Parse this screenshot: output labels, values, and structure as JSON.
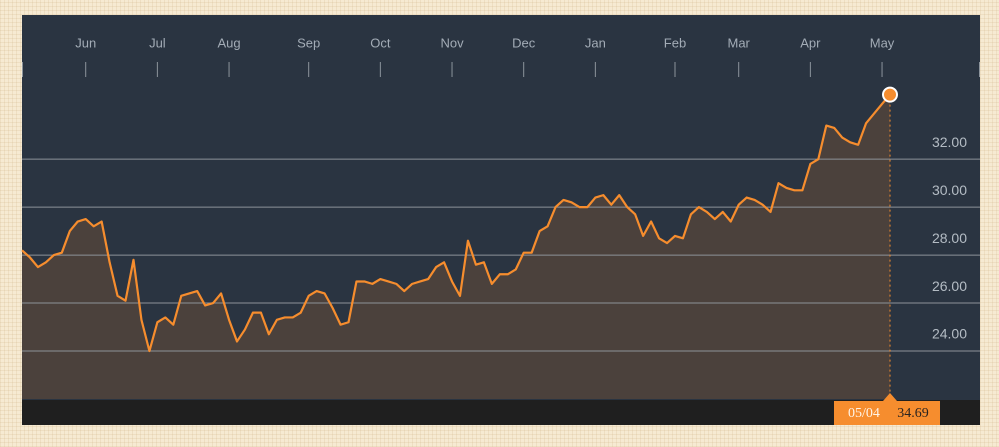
{
  "chart_data": {
    "type": "area",
    "categories": [
      null,
      null,
      null,
      null,
      null,
      null,
      null,
      null,
      "Jun",
      null,
      null,
      null,
      null,
      null,
      null,
      null,
      null,
      "Jul",
      null,
      null,
      null,
      null,
      null,
      null,
      null,
      null,
      "Aug",
      null,
      null,
      null,
      null,
      null,
      null,
      null,
      null,
      null,
      "Sep",
      null,
      null,
      null,
      null,
      null,
      null,
      null,
      null,
      "Oct",
      null,
      null,
      null,
      null,
      null,
      null,
      null,
      null,
      "Nov",
      null,
      null,
      null,
      null,
      null,
      null,
      null,
      null,
      "Dec",
      null,
      null,
      null,
      null,
      null,
      null,
      null,
      null,
      "Jan",
      null,
      null,
      null,
      null,
      null,
      null,
      null,
      null,
      null,
      "Feb",
      null,
      null,
      null,
      null,
      null,
      null,
      null,
      "Mar",
      null,
      null,
      null,
      null,
      null,
      null,
      null,
      null,
      "Apr",
      null,
      null,
      null,
      null,
      null,
      null,
      null,
      null,
      "May",
      "05/04"
    ],
    "series": [
      {
        "color": "#f68d2e",
        "fill": "#4b413c",
        "values": [
          28.2,
          27.9,
          27.5,
          27.7,
          28.0,
          28.1,
          29.0,
          29.4,
          29.5,
          29.2,
          29.4,
          27.7,
          26.3,
          26.1,
          27.8,
          25.3,
          24.0,
          25.2,
          25.4,
          25.1,
          26.3,
          26.4,
          26.5,
          25.9,
          26.0,
          26.4,
          25.3,
          24.4,
          24.9,
          25.6,
          25.6,
          24.7,
          25.3,
          25.4,
          25.4,
          25.6,
          26.3,
          26.5,
          26.4,
          25.8,
          25.1,
          25.2,
          26.9,
          26.9,
          26.8,
          27.0,
          26.9,
          26.8,
          26.5,
          26.8,
          26.9,
          27.0,
          27.5,
          27.7,
          26.9,
          26.3,
          28.6,
          27.6,
          27.7,
          26.8,
          27.2,
          27.2,
          27.4,
          28.1,
          28.1,
          29.0,
          29.2,
          30.0,
          30.3,
          30.2,
          30.0,
          30.0,
          30.4,
          30.5,
          30.1,
          30.5,
          30.0,
          29.7,
          28.8,
          29.4,
          28.7,
          28.5,
          28.8,
          28.7,
          29.7,
          30.0,
          29.8,
          29.5,
          29.8,
          29.4,
          30.1,
          30.4,
          30.3,
          30.1,
          29.8,
          31.0,
          30.8,
          30.7,
          30.7,
          31.8,
          32.0,
          33.4,
          33.3,
          32.9,
          32.7,
          32.6,
          33.5,
          33.9,
          34.3,
          34.69
        ]
      }
    ],
    "ylim": [
      22,
      35.3
    ],
    "yticks": [
      {
        "value": 24,
        "label": "24.00"
      },
      {
        "value": 26,
        "label": "26.00"
      },
      {
        "value": 28,
        "label": "28.00"
      },
      {
        "value": 30,
        "label": "30.00"
      },
      {
        "value": 32,
        "label": "32.00"
      }
    ],
    "grid": true
  }
}
